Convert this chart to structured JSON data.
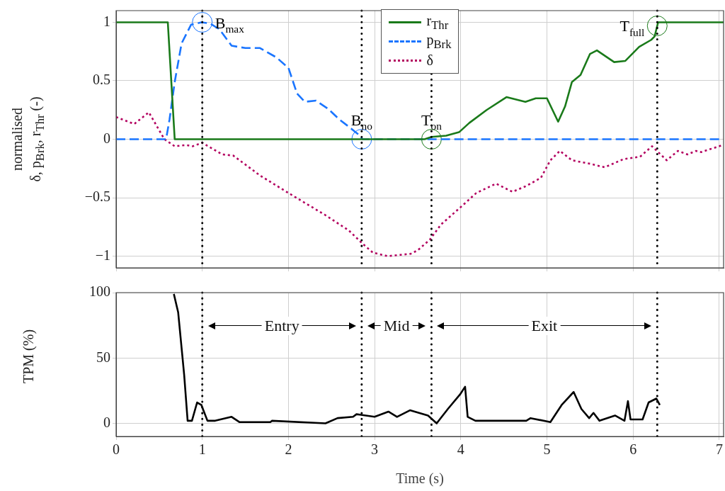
{
  "chart_data": [
    {
      "type": "line",
      "ylabel": "normalised\nδ, p$_{Brk}$, r$_{Thr}$ (-)",
      "xlim": [
        0,
        7.05
      ],
      "ylim": [
        -1.1,
        1.1
      ],
      "xticks": [
        0,
        1,
        2,
        3,
        4,
        5,
        6,
        7
      ],
      "yticks": [
        {
          "value": -1,
          "label": "−1"
        },
        {
          "value": -0.5,
          "label": "−0.5"
        },
        0,
        0.5,
        1
      ],
      "tick_labels": "y",
      "grid": true,
      "legend": "top",
      "series": [
        {
          "name": "r$_{Thr}$",
          "color": "#1a7a1a",
          "line_style": "solid",
          "marker": "none",
          "x": [
            0,
            0.6,
            0.68,
            3.58,
            3.66,
            3.83,
            3.98,
            4.1,
            4.3,
            4.53,
            4.75,
            4.87,
            5.0,
            5.13,
            5.21,
            5.29,
            5.39,
            5.5,
            5.58,
            5.78,
            5.91,
            6.07,
            6.21,
            6.25,
            6.29,
            7.05
          ],
          "values": [
            1,
            1,
            0,
            0,
            0.02,
            0.03,
            0.06,
            0.14,
            0.25,
            0.36,
            0.32,
            0.35,
            0.35,
            0.15,
            0.28,
            0.49,
            0.55,
            0.73,
            0.76,
            0.66,
            0.67,
            0.79,
            0.85,
            0.88,
            1,
            1
          ]
        },
        {
          "name": "p$_{Brk}$",
          "color": "#1a75ff",
          "line_style": "dashed",
          "marker": "none",
          "x": [
            0,
            0.58,
            0.62,
            0.68,
            0.76,
            0.87,
            0.99,
            1.09,
            1.2,
            1.34,
            1.5,
            1.67,
            1.86,
            2.0,
            2.1,
            2.19,
            2.32,
            2.46,
            2.59,
            2.73,
            2.83,
            2.86,
            7.0
          ],
          "values": [
            0,
            0,
            0.17,
            0.49,
            0.82,
            0.98,
            1,
            0.99,
            0.94,
            0.8,
            0.78,
            0.78,
            0.7,
            0.61,
            0.39,
            0.32,
            0.33,
            0.26,
            0.17,
            0.09,
            0.03,
            0,
            0
          ]
        },
        {
          "name": "δ",
          "color": "#b3005f",
          "line_style": "dotted",
          "marker": "none",
          "x": [
            0,
            0.21,
            0.38,
            0.56,
            0.68,
            0.81,
            0.89,
            1.0,
            1.23,
            1.36,
            1.67,
            2.0,
            2.43,
            2.7,
            2.87,
            2.98,
            3.15,
            3.42,
            3.5,
            3.64,
            3.77,
            4.0,
            4.18,
            4.41,
            4.6,
            4.76,
            4.93,
            5.04,
            5.15,
            5.29,
            5.5,
            5.67,
            5.89,
            6.08,
            6.22,
            6.39,
            6.52,
            6.63,
            6.73,
            6.79,
            7.04
          ],
          "values": [
            0.19,
            0.13,
            0.23,
            0,
            -0.06,
            -0.05,
            -0.06,
            -0.03,
            -0.13,
            -0.14,
            -0.31,
            -0.46,
            -0.65,
            -0.78,
            -0.9,
            -0.97,
            -1,
            -0.98,
            -0.95,
            -0.86,
            -0.73,
            -0.58,
            -0.46,
            -0.38,
            -0.45,
            -0.4,
            -0.33,
            -0.18,
            -0.1,
            -0.18,
            -0.21,
            -0.24,
            -0.17,
            -0.15,
            -0.06,
            -0.18,
            -0.1,
            -0.13,
            -0.1,
            -0.11,
            -0.05
          ]
        },
        {
          "type": "scatter",
          "color": "#1a75ff",
          "marker": "circle",
          "x": [
            1.0,
            2.85
          ],
          "values": [
            1,
            0
          ]
        },
        {
          "type": "scatter",
          "color": "#1a7a1a",
          "marker": "circle",
          "x": [
            3.66,
            6.28
          ],
          "values": [
            0,
            0.97
          ]
        }
      ],
      "ref_lines": [
        {
          "axis": "x",
          "value": 1.0,
          "line_style": "dotted",
          "color": "#000000"
        },
        {
          "axis": "x",
          "value": 2.85,
          "line_style": "dotted",
          "color": "#000000"
        },
        {
          "axis": "x",
          "value": 3.66,
          "line_style": "dotted",
          "color": "#000000"
        },
        {
          "axis": "x",
          "value": 6.28,
          "line_style": "dotted",
          "color": "#000000"
        }
      ],
      "annotations": [
        {
          "text": "B$_{max}$",
          "x": 1.0,
          "y": 1
        },
        {
          "text": "B$_{no}$",
          "x": 2.85,
          "y": 0
        },
        {
          "text": "T$_{on}$",
          "x": 3.66,
          "y": 0
        },
        {
          "text": "T$_{full}$",
          "x": 6.28,
          "y": 0.97
        }
      ]
    },
    {
      "type": "line",
      "xlabel": "Time (s)",
      "ylabel": "TPM (%)",
      "xlim": [
        0,
        7.05
      ],
      "ylim": [
        -10,
        100
      ],
      "xticks": [
        0,
        1,
        2,
        3,
        4,
        5,
        6,
        7
      ],
      "yticks": [
        0,
        50,
        100
      ],
      "grid": true,
      "series": [
        {
          "color": "#000000",
          "line_style": "solid",
          "marker": "none",
          "x": [
            0.67,
            0.72,
            0.79,
            0.83,
            0.88,
            0.94,
            0.99,
            1.06,
            1.15,
            1.34,
            1.43,
            1.79,
            1.81,
            2.43,
            2.57,
            2.75,
            2.79,
            3.0,
            3.16,
            3.26,
            3.41,
            3.62,
            3.72,
            3.85,
            3.99,
            4.05,
            4.08,
            4.17,
            4.76,
            4.81,
            5.04,
            5.17,
            5.31,
            5.4,
            5.49,
            5.54,
            5.61,
            5.79,
            5.9,
            5.94,
            5.97,
            6.11,
            6.18,
            6.27,
            6.31
          ],
          "values": [
            99,
            85,
            37,
            2,
            2,
            16,
            14,
            2,
            2,
            5,
            1,
            1,
            2,
            0,
            4,
            5,
            7,
            5,
            9,
            5,
            10,
            6,
            0,
            11,
            22,
            28,
            5,
            2,
            2,
            4,
            1,
            14,
            24,
            11,
            4,
            8,
            2,
            6,
            2,
            17,
            3,
            3,
            16,
            19,
            14
          ]
        }
      ],
      "ref_lines": [
        {
          "axis": "x",
          "value": 1.0,
          "line_style": "dotted",
          "color": "#000000"
        },
        {
          "axis": "x",
          "value": 2.85,
          "line_style": "dotted",
          "color": "#000000"
        },
        {
          "axis": "x",
          "value": 3.66,
          "line_style": "dotted",
          "color": "#000000"
        },
        {
          "axis": "x",
          "value": 6.28,
          "line_style": "dotted",
          "color": "#000000"
        }
      ],
      "annotations": [
        "Entry",
        "Mid",
        "Exit"
      ]
    }
  ]
}
